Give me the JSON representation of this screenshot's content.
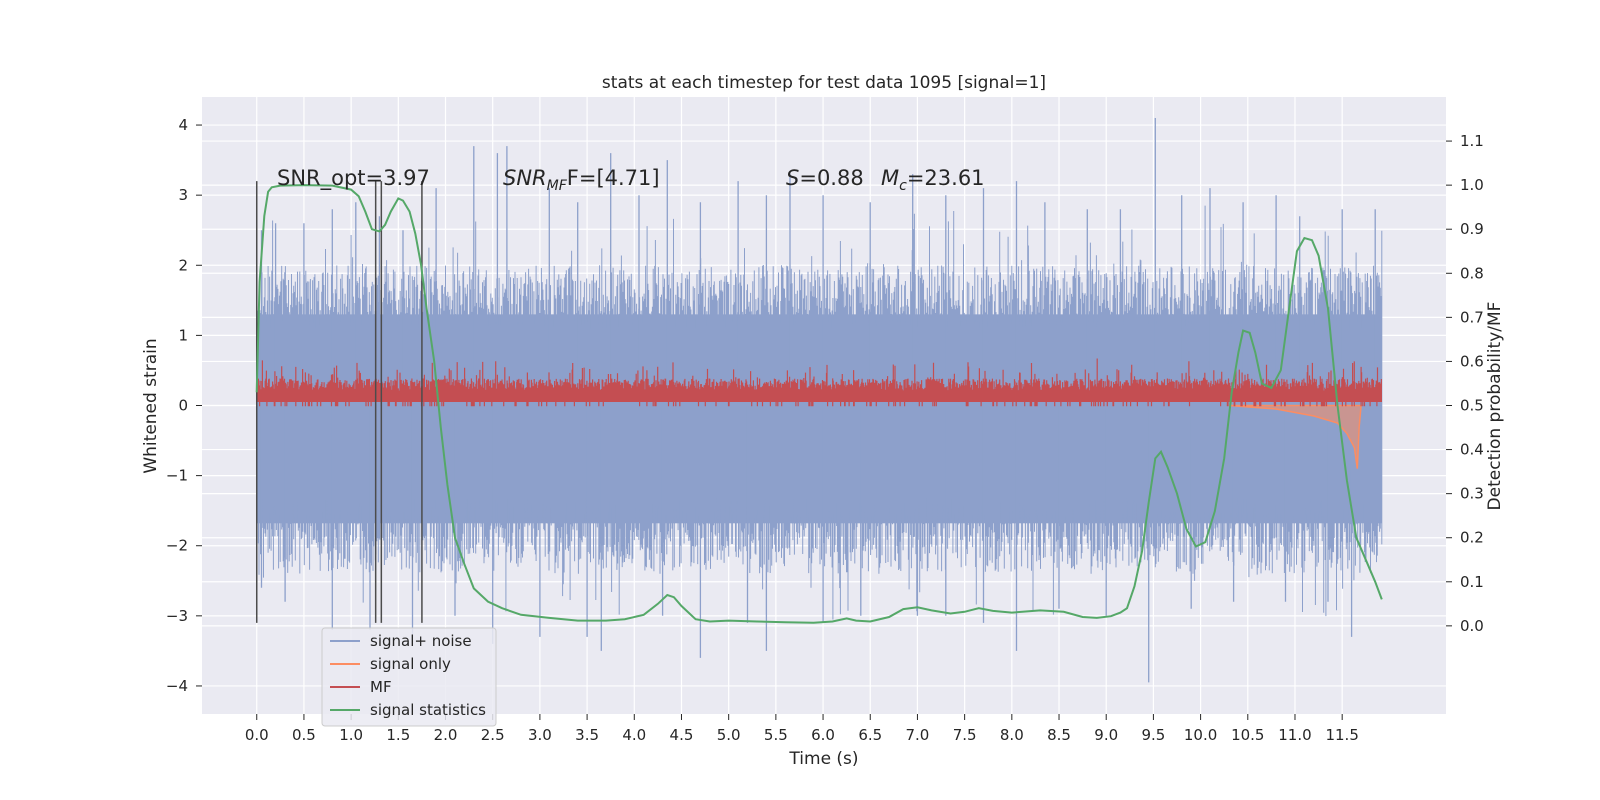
{
  "chart_data": {
    "type": "line",
    "title": "stats at each timestep for test data 1095 [signal=1]",
    "xlabel": "Time (s)",
    "ylabel": "Whitened strain",
    "y2label": "Detection probability/MF",
    "xlim": [
      -0.58,
      12.6
    ],
    "ylim": [
      -4.4,
      4.4
    ],
    "y2lim": [
      -0.2,
      1.2
    ],
    "x_ticks": [
      "0.0",
      "0.5",
      "1.0",
      "1.5",
      "2.0",
      "2.5",
      "3.0",
      "3.5",
      "4.0",
      "4.5",
      "5.0",
      "5.5",
      "6.0",
      "6.5",
      "7.0",
      "7.5",
      "8.0",
      "8.5",
      "9.0",
      "9.5",
      "10.0",
      "10.5",
      "11.0",
      "11.5"
    ],
    "x_tick_values": [
      0,
      0.5,
      1,
      1.5,
      2,
      2.5,
      3,
      3.5,
      4,
      4.5,
      5,
      5.5,
      6,
      6.5,
      7,
      7.5,
      8,
      8.5,
      9,
      9.5,
      10,
      10.5,
      11,
      11.5
    ],
    "y_ticks": [
      "4",
      "3",
      "2",
      "1",
      "0",
      "−1",
      "−2",
      "−3",
      "−4"
    ],
    "y_tick_values": [
      4,
      3,
      2,
      1,
      0,
      -1,
      -2,
      -3,
      -4
    ],
    "y2_ticks": [
      "1.1",
      "1.0",
      "0.9",
      "0.8",
      "0.7",
      "0.6",
      "0.5",
      "0.4",
      "0.3",
      "0.2",
      "0.1",
      "0.0"
    ],
    "y2_tick_values": [
      1.1,
      1.0,
      0.9,
      0.8,
      0.7,
      0.6,
      0.5,
      0.4,
      0.3,
      0.2,
      0.1,
      0.0
    ],
    "grid": true,
    "legend_position": "bottom-left",
    "annotations": {
      "snr_opt": "SNR_opt=3.97",
      "snr_mf_label": "SNR",
      "snr_mf_sub": "MF",
      "snr_mf_value": "F=[4.71]",
      "s_label": "S",
      "s_value": "=0.88",
      "mc_label": "M",
      "mc_sub": "c",
      "mc_value": "=23.61"
    },
    "vertical_lines": [
      0.0,
      1.26,
      1.32,
      1.75
    ],
    "series": [
      {
        "name": "signal+ noise",
        "color": "#8da0cb",
        "axis": "left",
        "x_range": [
          0,
          11.92
        ],
        "envelope_upper": 2.0,
        "envelope_lower": -2.4,
        "peaks": [
          [
            0.05,
            2.5
          ],
          [
            0.2,
            2.6
          ],
          [
            0.5,
            2.6
          ],
          [
            0.8,
            2.8
          ],
          [
            1.05,
            2.9
          ],
          [
            1.3,
            2.7
          ],
          [
            1.55,
            2.5
          ],
          [
            1.9,
            3.1
          ],
          [
            2.3,
            3.7
          ],
          [
            2.55,
            3.6
          ],
          [
            2.65,
            3.7
          ],
          [
            3.1,
            3.1
          ],
          [
            3.4,
            2.9
          ],
          [
            3.75,
            3.6
          ],
          [
            4.05,
            3.0
          ],
          [
            4.35,
            3.5
          ],
          [
            4.7,
            2.9
          ],
          [
            5.1,
            3.2
          ],
          [
            5.4,
            3.0
          ],
          [
            5.65,
            3.3
          ],
          [
            6.0,
            3.0
          ],
          [
            6.5,
            2.9
          ],
          [
            6.95,
            3.3
          ],
          [
            7.3,
            3.0
          ],
          [
            7.7,
            3.1
          ],
          [
            8.05,
            3.2
          ],
          [
            8.35,
            2.9
          ],
          [
            8.8,
            2.8
          ],
          [
            9.15,
            2.8
          ],
          [
            9.52,
            4.1
          ],
          [
            9.8,
            3.0
          ],
          [
            10.1,
            3.1
          ],
          [
            10.45,
            2.9
          ],
          [
            10.8,
            3.0
          ],
          [
            11.05,
            2.7
          ],
          [
            11.5,
            2.8
          ],
          [
            11.85,
            2.8
          ]
        ],
        "troughs": [
          [
            0.05,
            -2.6
          ],
          [
            0.3,
            -2.8
          ],
          [
            0.8,
            -3.2
          ],
          [
            1.2,
            -3.2
          ],
          [
            1.65,
            -3.3
          ],
          [
            2.1,
            -3.0
          ],
          [
            2.5,
            -3.4
          ],
          [
            3.0,
            -3.3
          ],
          [
            3.5,
            -3.3
          ],
          [
            3.65,
            -3.5
          ],
          [
            4.3,
            -3.0
          ],
          [
            4.7,
            -3.6
          ],
          [
            5.2,
            -3.1
          ],
          [
            5.4,
            -3.5
          ],
          [
            6.0,
            -3.1
          ],
          [
            6.4,
            -3.0
          ],
          [
            7.0,
            -3.0
          ],
          [
            7.3,
            -3.0
          ],
          [
            7.7,
            -3.1
          ],
          [
            8.05,
            -3.5
          ],
          [
            8.5,
            -2.9
          ],
          [
            9.0,
            -3.0
          ],
          [
            9.45,
            -3.95
          ],
          [
            9.9,
            -2.9
          ],
          [
            10.35,
            -2.8
          ],
          [
            10.9,
            -2.8
          ],
          [
            11.35,
            -2.8
          ],
          [
            11.6,
            -3.3
          ]
        ]
      },
      {
        "name": "signal only",
        "color": "#fc8d62",
        "axis": "left",
        "points": [
          [
            10.3,
            0.0
          ],
          [
            10.8,
            -0.05
          ],
          [
            11.2,
            -0.15
          ],
          [
            11.45,
            -0.25
          ],
          [
            11.55,
            -0.4
          ],
          [
            11.63,
            -0.6
          ],
          [
            11.66,
            -0.9
          ],
          [
            11.68,
            -0.3
          ],
          [
            11.7,
            0.0
          ]
        ]
      },
      {
        "name": "MF",
        "color": "#c44e52",
        "axis": "left",
        "x_range": [
          0,
          11.92
        ],
        "baseline": 0.05,
        "typical_top": 0.35,
        "max_top": 0.65
      },
      {
        "name": "signal statistics",
        "color": "#55a868",
        "axis": "right",
        "x": [
          0.0,
          0.03,
          0.08,
          0.12,
          0.16,
          0.25,
          0.5,
          0.8,
          1.0,
          1.08,
          1.15,
          1.22,
          1.3,
          1.36,
          1.42,
          1.5,
          1.55,
          1.62,
          1.68,
          1.74,
          1.8,
          1.88,
          1.95,
          2.02,
          2.1,
          2.2,
          2.3,
          2.45,
          2.6,
          2.8,
          3.1,
          3.4,
          3.7,
          3.9,
          4.1,
          4.25,
          4.35,
          4.42,
          4.5,
          4.65,
          4.8,
          5.0,
          5.3,
          5.6,
          5.9,
          6.1,
          6.25,
          6.35,
          6.5,
          6.7,
          6.85,
          7.0,
          7.15,
          7.35,
          7.5,
          7.65,
          7.8,
          8.0,
          8.3,
          8.55,
          8.75,
          8.9,
          9.05,
          9.15,
          9.22,
          9.3,
          9.38,
          9.45,
          9.52,
          9.58,
          9.65,
          9.75,
          9.85,
          9.95,
          10.05,
          10.15,
          10.25,
          10.33,
          10.4,
          10.45,
          10.52,
          10.58,
          10.65,
          10.75,
          10.85,
          10.95,
          11.02,
          11.1,
          11.18,
          11.25,
          11.35,
          11.45,
          11.55,
          11.65,
          11.75,
          11.85,
          11.92
        ],
        "y": [
          0.53,
          0.78,
          0.93,
          0.985,
          0.995,
          0.999,
          1.0,
          0.999,
          0.99,
          0.975,
          0.94,
          0.9,
          0.895,
          0.91,
          0.94,
          0.97,
          0.965,
          0.94,
          0.89,
          0.82,
          0.72,
          0.6,
          0.45,
          0.32,
          0.2,
          0.14,
          0.085,
          0.055,
          0.04,
          0.025,
          0.018,
          0.012,
          0.012,
          0.015,
          0.025,
          0.05,
          0.07,
          0.065,
          0.045,
          0.015,
          0.01,
          0.012,
          0.01,
          0.008,
          0.007,
          0.01,
          0.017,
          0.012,
          0.01,
          0.02,
          0.038,
          0.042,
          0.035,
          0.028,
          0.032,
          0.04,
          0.034,
          0.03,
          0.035,
          0.032,
          0.02,
          0.018,
          0.022,
          0.03,
          0.04,
          0.09,
          0.17,
          0.28,
          0.38,
          0.395,
          0.36,
          0.3,
          0.22,
          0.18,
          0.19,
          0.26,
          0.38,
          0.53,
          0.62,
          0.67,
          0.665,
          0.62,
          0.55,
          0.54,
          0.58,
          0.74,
          0.85,
          0.88,
          0.875,
          0.84,
          0.72,
          0.5,
          0.33,
          0.2,
          0.15,
          0.1,
          0.06
        ]
      }
    ]
  }
}
